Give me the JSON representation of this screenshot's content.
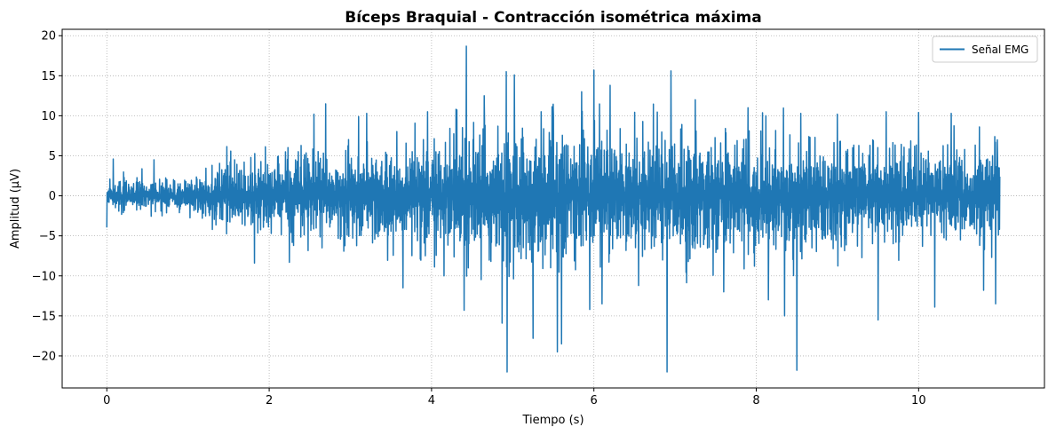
{
  "chart_data": {
    "type": "line",
    "title": "Bíceps Braquial - Contracción isométrica máxima",
    "xlabel": "Tiempo (s)",
    "ylabel": "Amplitud (µV)",
    "xlim": [
      -0.55,
      11.55
    ],
    "ylim": [
      -24.0,
      20.8
    ],
    "xticks": [
      0,
      2,
      4,
      6,
      8,
      10
    ],
    "xtick_labels": [
      "0",
      "2",
      "4",
      "6",
      "8",
      "10"
    ],
    "yticks": [
      -20,
      -15,
      -10,
      -5,
      0,
      5,
      10,
      15,
      20
    ],
    "ytick_labels": [
      "−20",
      "−15",
      "−10",
      "−5",
      "0",
      "5",
      "10",
      "15",
      "20"
    ],
    "grid": true,
    "grid_style": "dotted",
    "legend_position": "upper right",
    "series": [
      {
        "name": "Señal EMG",
        "color": "#1f77b4",
        "x_start": 0.0,
        "x_end": 11.0,
        "envelope": {
          "t": [
            0.0,
            0.5,
            1.0,
            1.5,
            2.0,
            2.5,
            3.0,
            3.5,
            4.0,
            4.5,
            5.0,
            5.5,
            6.0,
            6.5,
            7.0,
            7.5,
            8.0,
            8.5,
            9.0,
            9.5,
            10.0,
            10.5,
            11.0
          ],
          "amplitude": [
            1.2,
            1.2,
            1.4,
            2.1,
            2.8,
            3.4,
            3.6,
            3.9,
            4.2,
            4.6,
            4.9,
            5.0,
            4.7,
            4.5,
            4.4,
            4.3,
            4.2,
            4.0,
            3.9,
            3.8,
            3.6,
            3.4,
            3.2
          ]
        },
        "peaks": [
          {
            "x": 0.08,
            "y": 4.6
          },
          {
            "x": 0.58,
            "y": 4.5
          },
          {
            "x": 1.3,
            "y": -4.2
          },
          {
            "x": 2.2,
            "y": 5.5
          },
          {
            "x": 2.3,
            "y": -6.2
          },
          {
            "x": 2.55,
            "y": 10.2
          },
          {
            "x": 2.65,
            "y": -6.5
          },
          {
            "x": 3.2,
            "y": 10.3
          },
          {
            "x": 3.65,
            "y": -11.5
          },
          {
            "x": 3.95,
            "y": 10.5
          },
          {
            "x": 4.3,
            "y": 10.8
          },
          {
            "x": 4.4,
            "y": -14.3
          },
          {
            "x": 4.43,
            "y": 18.7
          },
          {
            "x": 4.65,
            "y": 12.5
          },
          {
            "x": 4.87,
            "y": -15.9
          },
          {
            "x": 4.92,
            "y": 15.5
          },
          {
            "x": 4.93,
            "y": -22.0
          },
          {
            "x": 5.02,
            "y": 15.1
          },
          {
            "x": 5.25,
            "y": -17.8
          },
          {
            "x": 5.35,
            "y": 10.5
          },
          {
            "x": 5.5,
            "y": 10.0
          },
          {
            "x": 5.55,
            "y": -19.5
          },
          {
            "x": 5.6,
            "y": -18.5
          },
          {
            "x": 5.85,
            "y": 13.0
          },
          {
            "x": 5.95,
            "y": -14.2
          },
          {
            "x": 6.0,
            "y": 15.7
          },
          {
            "x": 6.1,
            "y": -13.5
          },
          {
            "x": 6.2,
            "y": 13.8
          },
          {
            "x": 6.55,
            "y": -11.2
          },
          {
            "x": 6.9,
            "y": -22.0
          },
          {
            "x": 6.95,
            "y": 15.6
          },
          {
            "x": 7.25,
            "y": 12.0
          },
          {
            "x": 7.6,
            "y": -12.0
          },
          {
            "x": 7.9,
            "y": 11.0
          },
          {
            "x": 8.15,
            "y": -13.0
          },
          {
            "x": 8.5,
            "y": -21.8
          },
          {
            "x": 8.55,
            "y": 10.3
          },
          {
            "x": 8.35,
            "y": -15.0
          },
          {
            "x": 9.0,
            "y": 10.2
          },
          {
            "x": 9.5,
            "y": -15.5
          },
          {
            "x": 9.6,
            "y": 10.5
          },
          {
            "x": 10.0,
            "y": 10.4
          },
          {
            "x": 10.2,
            "y": -13.9
          },
          {
            "x": 10.4,
            "y": 10.3
          },
          {
            "x": 10.75,
            "y": 8.6
          },
          {
            "x": 10.8,
            "y": -11.8
          },
          {
            "x": 10.95,
            "y": -13.5
          },
          {
            "x": 10.97,
            "y": 7.0
          }
        ]
      }
    ]
  }
}
